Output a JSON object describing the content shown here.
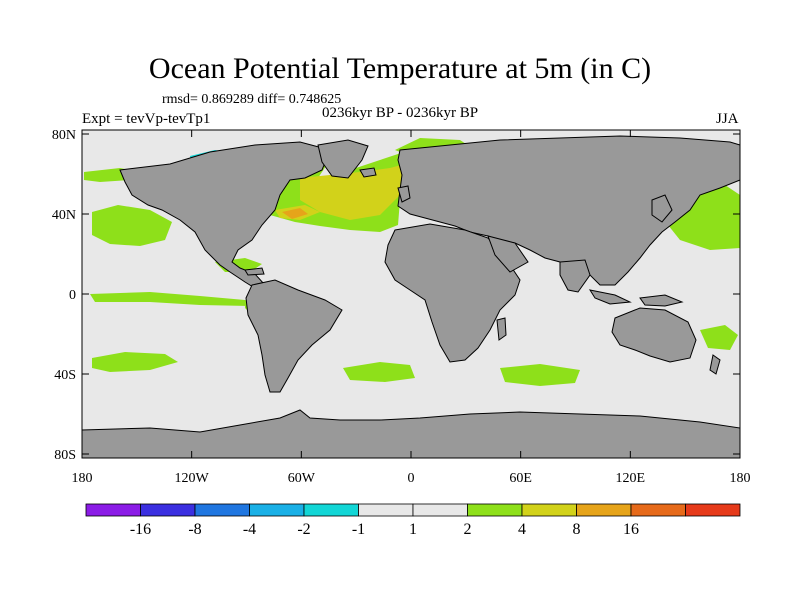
{
  "title": "Ocean Potential Temperature at 5m (in C)",
  "stats": "rmsd= 0.869289 diff= 0.748625",
  "experiment": "Expt = tevVp-tevTp1",
  "period": "0236kyr BP - 0236kyr BP",
  "season": "JJA",
  "lat_ticks": [
    {
      "label": "80N",
      "lat": 80
    },
    {
      "label": "40N",
      "lat": 40
    },
    {
      "label": "0",
      "lat": 0
    },
    {
      "label": "40S",
      "lat": -40
    },
    {
      "label": "80S",
      "lat": -80
    }
  ],
  "lon_ticks": [
    {
      "label": "180",
      "lon": -180
    },
    {
      "label": "120W",
      "lon": -120
    },
    {
      "label": "60W",
      "lon": -60
    },
    {
      "label": "0",
      "lon": 0
    },
    {
      "label": "60E",
      "lon": 60
    },
    {
      "label": "120E",
      "lon": 120
    },
    {
      "label": "180",
      "lon": 180
    }
  ],
  "colorbar": {
    "colors": [
      "#8b1ce6",
      "#3b2fe0",
      "#1f76e0",
      "#1ab0e6",
      "#12d6d6",
      "#e8e8e8",
      "#e8e8e8",
      "#8ee01a",
      "#d2d21a",
      "#e6a41a",
      "#e66a1a",
      "#e63a1a"
    ],
    "labels": [
      "-16",
      "-8",
      "-4",
      "-2",
      "-1",
      "1",
      "2",
      "4",
      "8",
      "16"
    ]
  },
  "colors": {
    "ocean_background": "#e8e8e8",
    "land": "#999999",
    "anomaly_1_2": "#8ee01a",
    "anomaly_2_4": "#d2d21a",
    "anomaly_4_8": "#e6a41a",
    "anomaly_neg_2_1": "#12d6d6"
  }
}
